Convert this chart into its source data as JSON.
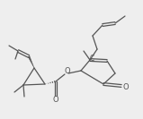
{
  "bg_color": "#eeeeee",
  "line_color": "#555555",
  "lw": 0.9,
  "figsize": [
    1.59,
    1.33
  ],
  "dpi": 100,
  "xlim": [
    0,
    159
  ],
  "ylim": [
    133,
    0
  ]
}
